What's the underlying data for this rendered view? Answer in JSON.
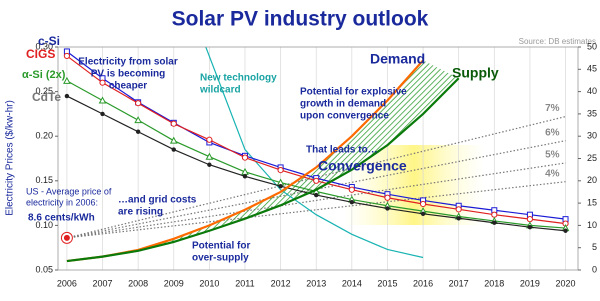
{
  "chart_data": {
    "type": "line",
    "title": "Solar PV industry outlook",
    "source": "Source: DB estimates",
    "ylabel": "Electricity Prices ($/kw-hr)",
    "xlim": [
      2005.75,
      2020.35
    ],
    "xticks": [
      2006,
      2007,
      2008,
      2009,
      2010,
      2011,
      2012,
      2013,
      2014,
      2015,
      2016,
      2017,
      2018,
      2019,
      2020
    ],
    "ylim": [
      0.05,
      0.3
    ],
    "yticks": [
      {
        "value": 0.05,
        "label": "0.05"
      },
      {
        "value": 0.1,
        "label": "0.10"
      },
      {
        "value": 0.15,
        "label": "0.15"
      },
      {
        "value": 0.2,
        "label": "0.20"
      },
      {
        "value": 0.25,
        "label": "0.25"
      },
      {
        "value": 0.3,
        "label": "0.30"
      }
    ],
    "y2lim": [
      0,
      50
    ],
    "y2ticks": [
      0,
      5,
      10,
      15,
      20,
      25,
      30,
      35,
      40,
      45,
      50
    ],
    "grid": true,
    "x": [
      2006,
      2007,
      2008,
      2009,
      2010,
      2011,
      2012,
      2013,
      2014,
      2015,
      2016,
      2017,
      2018,
      2019,
      2020
    ],
    "series": [
      {
        "name": "c-Si",
        "color": "#1a1ad6",
        "marker": "square",
        "values": [
          0.295,
          0.265,
          0.238,
          0.215,
          0.193,
          0.178,
          0.165,
          0.153,
          0.143,
          0.135,
          0.128,
          0.122,
          0.117,
          0.112,
          0.107
        ]
      },
      {
        "name": "CIGS",
        "color": "#e02020",
        "marker": "circle",
        "values": [
          0.29,
          0.26,
          0.237,
          0.214,
          0.196,
          0.176,
          0.162,
          0.15,
          0.14,
          0.131,
          0.124,
          0.118,
          0.112,
          0.107,
          0.102
        ]
      },
      {
        "name": "α-Si (2x)",
        "color": "#2a9a2a",
        "marker": "triangle",
        "values": [
          0.262,
          0.24,
          0.218,
          0.195,
          0.177,
          0.16,
          0.148,
          0.138,
          0.129,
          0.122,
          0.116,
          0.11,
          0.105,
          0.1,
          0.097
        ]
      },
      {
        "name": "CdTe",
        "color": "#222222",
        "marker": "dot",
        "values": [
          0.245,
          0.225,
          0.205,
          0.185,
          0.168,
          0.155,
          0.144,
          0.134,
          0.126,
          0.119,
          0.113,
          0.108,
          0.103,
          0.098,
          0.094
        ]
      },
      {
        "name": "Demand",
        "color": "#ff6a00",
        "axis": "y2",
        "values": [
          2,
          3,
          4.5,
          7,
          10,
          13.5,
          17.5,
          23,
          30,
          38,
          47,
          null,
          null,
          null,
          null
        ]
      },
      {
        "name": "Supply",
        "color": "#0a7a0a",
        "axis": "y2",
        "values": [
          2,
          3,
          4.3,
          6.3,
          8.8,
          11.5,
          14.5,
          18,
          22.5,
          28,
          35,
          43,
          null,
          null,
          null
        ]
      }
    ],
    "wildcard": {
      "color": "#19b3b3",
      "x": [
        2009.9,
        2011,
        2012,
        2013,
        2014,
        2015,
        2016
      ],
      "values": [
        0.3,
        0.185,
        0.14,
        0.112,
        0.09,
        0.073,
        0.064
      ]
    },
    "grid_cost_x": [
      2006,
      2020
    ],
    "grid_cost_lines": [
      {
        "label": "7%",
        "values": [
          0.086,
          0.222
        ]
      },
      {
        "label": "6%",
        "values": [
          0.086,
          0.195
        ]
      },
      {
        "label": "5%",
        "values": [
          0.086,
          0.17
        ]
      },
      {
        "label": "4%",
        "values": [
          0.086,
          0.149
        ]
      }
    ],
    "us_price": {
      "x": 2006,
      "value": 0.086
    },
    "annotations": [
      {
        "lines": [
          "Electricity from solar",
          "PV is becoming",
          "cheaper"
        ]
      },
      {
        "lines": [
          "New technology",
          "wildcard"
        ]
      },
      {
        "lines": [
          "Potential for explosive",
          "growth in demand",
          "upon convergence"
        ]
      },
      {
        "lines": [
          "That leads to…"
        ]
      },
      {
        "lines": [
          "Convergence"
        ]
      },
      {
        "lines": [
          "US - Average price of",
          "electricity in 2006:"
        ]
      },
      {
        "lines": [
          "8.6 cents/kWh"
        ]
      },
      {
        "lines": [
          "…and grid costs",
          "are rising"
        ]
      },
      {
        "lines": [
          "Potential for",
          "over-supply"
        ]
      }
    ]
  }
}
